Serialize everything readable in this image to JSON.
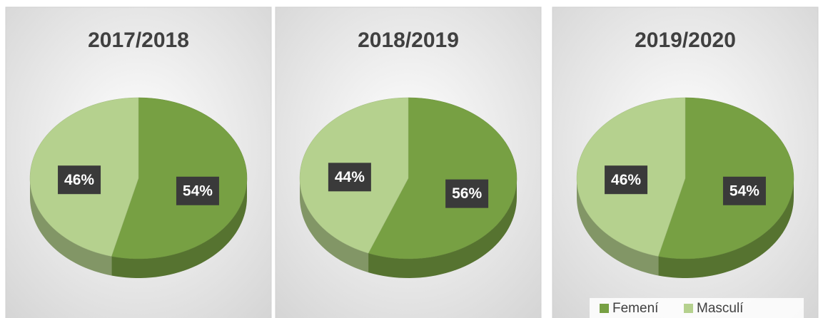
{
  "chart_data": [
    {
      "type": "pie",
      "title": "2017/2018",
      "categories": [
        "Femení",
        "Masculí"
      ],
      "values": [
        54,
        46
      ],
      "value_labels": [
        "54%",
        "46%"
      ],
      "colors": [
        "#77a043",
        "#b5d18e"
      ]
    },
    {
      "type": "pie",
      "title": "2018/2019",
      "categories": [
        "Femení",
        "Masculí"
      ],
      "values": [
        56,
        44
      ],
      "value_labels": [
        "56%",
        "44%"
      ],
      "colors": [
        "#77a043",
        "#b5d18e"
      ]
    },
    {
      "type": "pie",
      "title": "2019/2020",
      "categories": [
        "Femení",
        "Masculí"
      ],
      "values": [
        54,
        46
      ],
      "value_labels": [
        "54%",
        "46%"
      ],
      "colors": [
        "#77a043",
        "#b5d18e"
      ],
      "legend": "bottom-right"
    }
  ]
}
